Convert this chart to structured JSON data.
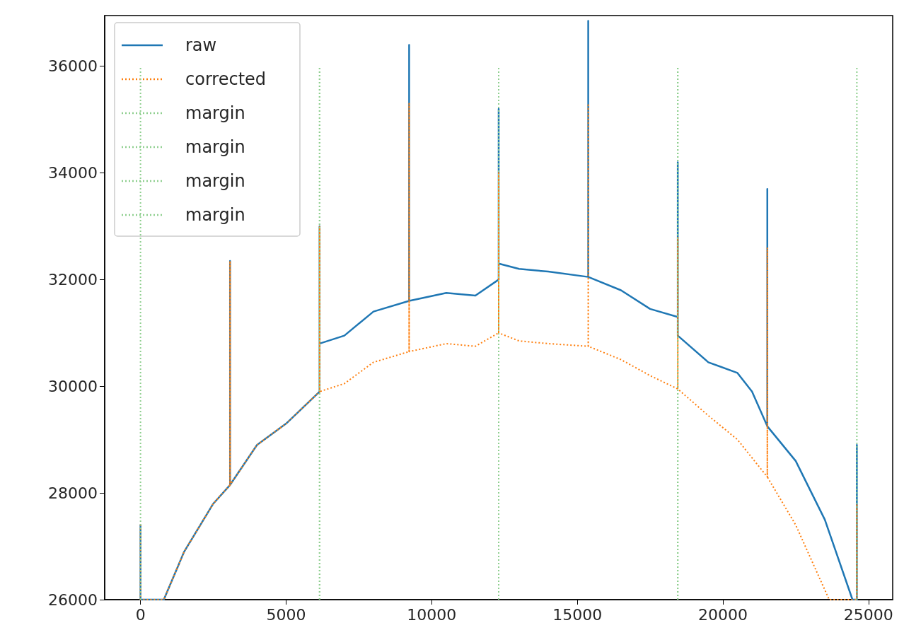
{
  "chart_data": {
    "type": "line",
    "xlim": [
      -1230,
      25830
    ],
    "ylim": [
      26000,
      36950
    ],
    "xticks": [
      0,
      5000,
      10000,
      15000,
      20000,
      25000
    ],
    "yticks": [
      26000,
      28000,
      30000,
      32000,
      34000,
      36000
    ],
    "grid": false,
    "legend": "top left",
    "marker": "none",
    "series": [
      {
        "name": "raw",
        "color": "#1f77b4",
        "line_style": "solid",
        "x": [
          0,
          0,
          0,
          800,
          1500,
          2500,
          3075,
          3075,
          3075,
          4000,
          5000,
          6150,
          6150,
          6150,
          7000,
          8000,
          9225,
          9225,
          9225,
          10500,
          11500,
          12300,
          12300,
          12300,
          13000,
          14000,
          15375,
          15375,
          15375,
          16500,
          17500,
          18450,
          18450,
          18450,
          19500,
          20500,
          21000,
          21525,
          21525,
          21525,
          22500,
          23500,
          24450,
          24600,
          24600,
          24600
        ],
        "values": [
          26000,
          27400,
          26000,
          26000,
          26900,
          27800,
          28150,
          32350,
          28150,
          28900,
          29300,
          29900,
          33000,
          30800,
          30950,
          31400,
          31600,
          36400,
          31600,
          31750,
          31700,
          32000,
          35200,
          32300,
          32200,
          32150,
          32050,
          36850,
          32050,
          31800,
          31450,
          31300,
          34200,
          30950,
          30450,
          30250,
          29900,
          29250,
          33700,
          29250,
          28600,
          27500,
          26000,
          26000,
          28900,
          26000
        ]
      },
      {
        "name": "corrected",
        "color": "#ff7f0e",
        "line_style": "dotted",
        "x": [
          0,
          0,
          0,
          800,
          1500,
          2500,
          3075,
          3075,
          3075,
          4000,
          5000,
          6150,
          6150,
          6150,
          7000,
          8000,
          9225,
          9225,
          9225,
          10500,
          11500,
          12300,
          12300,
          12300,
          13000,
          14000,
          15375,
          15375,
          15375,
          16500,
          17500,
          18450,
          18450,
          18450,
          19500,
          20500,
          21525,
          21525,
          21525,
          22500,
          23650,
          24600,
          24600,
          24600
        ],
        "values": [
          26000,
          27400,
          26000,
          26000,
          26900,
          27800,
          28150,
          32350,
          28150,
          28900,
          29300,
          29900,
          33000,
          29900,
          30050,
          30450,
          30650,
          35300,
          30650,
          30800,
          30750,
          31000,
          34000,
          31000,
          30850,
          30800,
          30750,
          35300,
          30750,
          30500,
          30200,
          29950,
          32800,
          29950,
          29450,
          29000,
          28300,
          32600,
          28300,
          27400,
          26000,
          26000,
          27800,
          26000
        ]
      },
      {
        "name": "margin",
        "color": "#8fcf8f",
        "line_style": "dotted",
        "x": [
          0,
          0,
          null,
          6150,
          6150
        ],
        "values": [
          26000,
          36000,
          null,
          26000,
          36000
        ]
      },
      {
        "name": "margin",
        "color": "#8fcf8f",
        "line_style": "dotted",
        "x": [
          6150,
          6150,
          null,
          12300,
          12300
        ],
        "values": [
          26000,
          36000,
          null,
          26000,
          36000
        ]
      },
      {
        "name": "margin",
        "color": "#8fcf8f",
        "line_style": "dotted",
        "x": [
          12300,
          12300,
          null,
          18450,
          18450
        ],
        "values": [
          26000,
          36000,
          null,
          26000,
          36000
        ]
      },
      {
        "name": "margin",
        "color": "#8fcf8f",
        "line_style": "dotted",
        "x": [
          18450,
          18450,
          null,
          24600,
          24600
        ],
        "values": [
          26000,
          36000,
          null,
          26000,
          36000
        ]
      }
    ]
  }
}
